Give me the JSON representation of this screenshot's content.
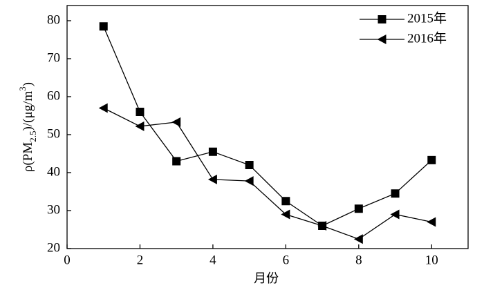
{
  "chart_data": {
    "type": "line",
    "x_label": "月份",
    "y_label_parts": [
      "ρ(PM",
      "2.5",
      ")/(μg/m",
      "3",
      ")"
    ],
    "x": [
      1,
      2,
      3,
      4,
      5,
      6,
      7,
      8,
      9,
      10
    ],
    "series": [
      {
        "name": "2015年",
        "color": "#000000",
        "marker": "square",
        "values": [
          78.5,
          56,
          43,
          45.5,
          42,
          32.5,
          26,
          30.5,
          34.5,
          43.3
        ]
      },
      {
        "name": "2016年",
        "color": "#000000",
        "marker": "triangle-left",
        "values": [
          57,
          52.2,
          53.3,
          38.2,
          37.8,
          29,
          26,
          22.5,
          29,
          27
        ]
      }
    ],
    "xlim": [
      0,
      11
    ],
    "xticks": [
      0,
      2,
      4,
      6,
      8,
      10
    ],
    "ylim": [
      20,
      84
    ],
    "yticks": [
      20,
      30,
      40,
      50,
      60,
      70,
      80
    ],
    "legend": "top-right",
    "grid": false
  }
}
